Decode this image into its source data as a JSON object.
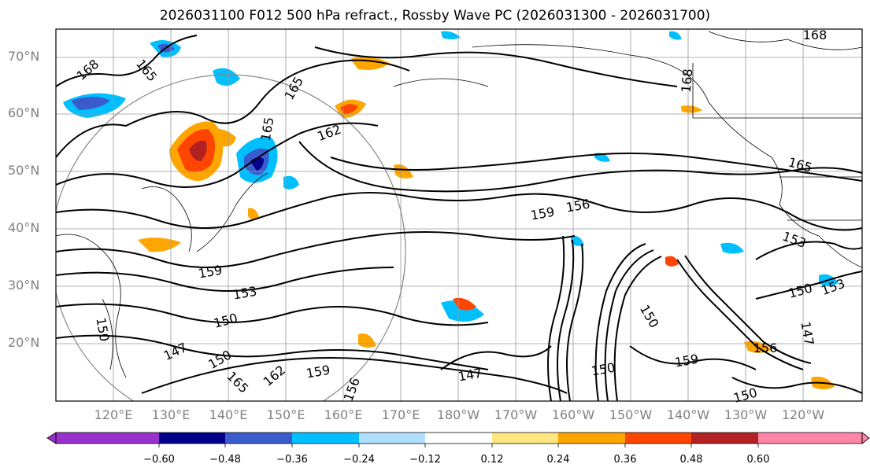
{
  "title": "2026031100 F012 500 hPa refract., Rossby Wave PC (2026031300 - 2026031700)",
  "lat_labels": [
    "70°N",
    "60°N",
    "50°N",
    "40°N",
    "30°N",
    "20°N"
  ],
  "lon_labels": [
    "120°E",
    "130°E",
    "140°E",
    "150°E",
    "160°E",
    "170°E",
    "180°W",
    "170°W",
    "160°W",
    "150°W",
    "140°W",
    "130°W",
    "120°W"
  ],
  "colorbar": {
    "colors": [
      "#9932cc",
      "#00008b",
      "#3a5bcc",
      "#00bfff",
      "#b0e0ff",
      "#ffffff",
      "#ffe680",
      "#ffa500",
      "#ff4500",
      "#b22222",
      "#ff85a9"
    ],
    "tick_labels": [
      "−0.60",
      "−0.48",
      "−0.36",
      "−0.24",
      "−0.12",
      "0.12",
      "0.24",
      "0.36",
      "0.48",
      "0.60"
    ]
  },
  "contour_labels": [
    "168",
    "165",
    "165",
    "165",
    "162",
    "168",
    "168",
    "165",
    "159",
    "156",
    "153",
    "159",
    "153",
    "150",
    "150",
    "147",
    "150",
    "165",
    "162",
    "159",
    "156",
    "147",
    "150",
    "159",
    "156",
    "150",
    "150",
    "153",
    "150",
    "147"
  ]
}
